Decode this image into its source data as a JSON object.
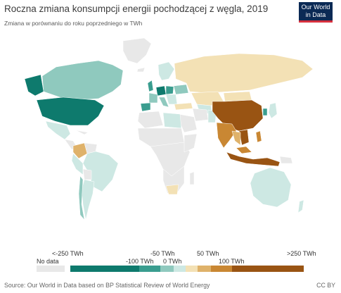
{
  "title": "Roczna zmiana konsumpcji energii pochodzącej z węgla, 2019",
  "subtitle": "Zmiana w porównaniu do roku poprzedniego w TWh",
  "logo": {
    "line1": "Our World",
    "line2": "in Data"
  },
  "legend": {
    "nodata": "No data",
    "labels": {
      "lt_minus250": "<-250 TWh",
      "minus100": "-100 TWh",
      "minus50": "-50 TWh",
      "zero": "0 TWh",
      "plus50": "50 TWh",
      "plus100": "100 TWh",
      "gt_plus250": ">250 TWh"
    },
    "colors": {
      "nodata": "#e8e8e8",
      "c1": "#0e7a6d",
      "c2": "#3a9d8f",
      "c3": "#8fc9be",
      "c4": "#cde8e3",
      "c5": "#f3e1b5",
      "c6": "#dfb26a",
      "c7": "#c98733",
      "c8": "#995413"
    }
  },
  "footer": {
    "source": "Source: Our World in Data based on BP Statistical Review of World Energy",
    "license": "CC BY"
  }
}
